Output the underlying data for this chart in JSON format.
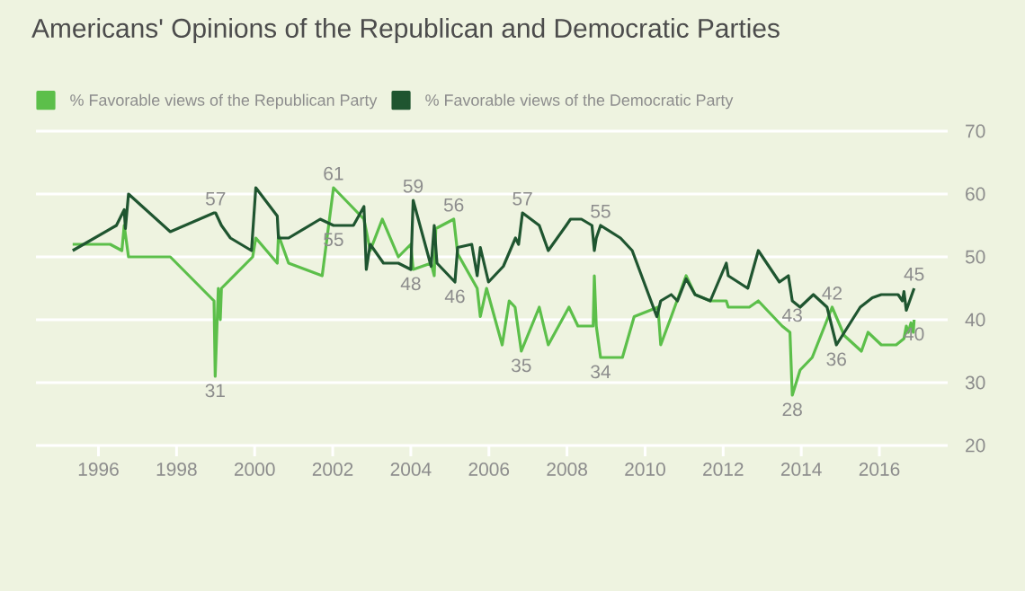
{
  "chart_data": {
    "type": "line",
    "title": "Americans' Opinions of the Republican and Democratic Parties",
    "series": [
      {
        "name": "% Favorable views of the Republican Party",
        "color": "#5cbf4a",
        "x": [
          1995.34,
          1996.3,
          1996.6,
          1996.66,
          1996.77,
          1997.84,
          1998.96,
          1998.99,
          1999.07,
          1999.12,
          1999.15,
          1999.95,
          2000.03,
          2000.58,
          2000.61,
          2000.87,
          2001.73,
          2002.02,
          2002.8,
          2002.96,
          2003.27,
          2003.68,
          2004.0,
          2004.06,
          2004.52,
          2004.6,
          2004.64,
          2005.1,
          2005.2,
          2005.7,
          2005.78,
          2005.94,
          2006.34,
          2006.52,
          2006.67,
          2006.83,
          2007.29,
          2007.52,
          2008.05,
          2008.28,
          2008.67,
          2008.7,
          2008.75,
          2008.86,
          2009.42,
          2009.72,
          2010.33,
          2010.4,
          2010.67,
          2011.05,
          2011.28,
          2011.67,
          2012.08,
          2012.13,
          2012.67,
          2012.9,
          2013.51,
          2013.71,
          2013.77,
          2013.97,
          2014.28,
          2014.79,
          2015.1,
          2015.54,
          2015.71,
          2016.05,
          2016.43,
          2016.63,
          2016.69,
          2016.74,
          2016.81,
          2016.87,
          2016.89
        ],
        "values": [
          52,
          52,
          51,
          55,
          50,
          50,
          43,
          31,
          45,
          40,
          45,
          50,
          53,
          49,
          53.5,
          49,
          47,
          61,
          56,
          51,
          56,
          50,
          52,
          48,
          49,
          47,
          54.5,
          56,
          50.5,
          45,
          40.5,
          45,
          36,
          43,
          42,
          35,
          42,
          36,
          42,
          39,
          39,
          47,
          39,
          34,
          34,
          40.5,
          42,
          36,
          40.5,
          47,
          44,
          43,
          43,
          42,
          42,
          43,
          39,
          38,
          28,
          32,
          34,
          42,
          37.5,
          35,
          38,
          36,
          36,
          37,
          39,
          38,
          39.5,
          38,
          40
        ]
      },
      {
        "name": "% Favorable views of the Democratic Party",
        "color": "#1f5530",
        "x": [
          1995.34,
          1996.46,
          1996.66,
          1996.69,
          1996.77,
          1997.84,
          1998.96,
          1999.0,
          1999.15,
          1999.38,
          1999.92,
          2000.03,
          2000.58,
          2000.61,
          2000.87,
          2001.68,
          2002.02,
          2002.53,
          2002.8,
          2002.86,
          2002.96,
          2003.3,
          2003.68,
          2004.0,
          2004.06,
          2004.52,
          2004.6,
          2004.67,
          2005.13,
          2005.2,
          2005.56,
          2005.7,
          2005.78,
          2005.99,
          2006.37,
          2006.68,
          2006.76,
          2006.86,
          2007.29,
          2007.52,
          2007.98,
          2008.09,
          2008.37,
          2008.64,
          2008.7,
          2008.75,
          2008.86,
          2009.37,
          2009.67,
          2010.3,
          2010.4,
          2010.67,
          2010.83,
          2011.05,
          2011.28,
          2011.67,
          2012.08,
          2012.13,
          2012.63,
          2012.9,
          2013.44,
          2013.67,
          2013.77,
          2013.97,
          2014.31,
          2014.66,
          2014.9,
          2015.51,
          2015.82,
          2016.05,
          2016.48,
          2016.59,
          2016.63,
          2016.69,
          2016.89
        ],
        "values": [
          51,
          55,
          57.5,
          54.5,
          60,
          54,
          57,
          57,
          55,
          53,
          51,
          61,
          56.5,
          53,
          53,
          56,
          55,
          55,
          58,
          48,
          52,
          49,
          49,
          48,
          59,
          48.5,
          55,
          49,
          46,
          51.5,
          52,
          47,
          51.5,
          46,
          48.5,
          53,
          52,
          57,
          55,
          51,
          55,
          56,
          56,
          55,
          51,
          53,
          55,
          53,
          51,
          40.5,
          43,
          44,
          43,
          46.5,
          44,
          43,
          49,
          47,
          45,
          51,
          46,
          47,
          43,
          42,
          44,
          42,
          36,
          42,
          43.5,
          44,
          44,
          43,
          44.5,
          41.5,
          45
        ]
      }
    ],
    "xlim": [
      1994.4,
      2017.75
    ],
    "xticks": [
      1996,
      1998,
      2000,
      2002,
      2004,
      2006,
      2008,
      2010,
      2012,
      2014,
      2016
    ],
    "ylim": [
      20,
      70
    ],
    "yticks": [
      20,
      30,
      40,
      50,
      60,
      70
    ],
    "grid": "y",
    "legend": "top left",
    "annotations": [
      {
        "text": "57",
        "x": 1999.0,
        "y": 57
      },
      {
        "text": "31",
        "x": 1998.99,
        "y": 31
      },
      {
        "text": "61",
        "x": 2002.02,
        "y": 61
      },
      {
        "text": "55",
        "x": 2002.02,
        "y": 55
      },
      {
        "text": "59",
        "x": 2004.06,
        "y": 59
      },
      {
        "text": "48",
        "x": 2004.0,
        "y": 48
      },
      {
        "text": "56",
        "x": 2005.1,
        "y": 56
      },
      {
        "text": "46",
        "x": 2005.13,
        "y": 46
      },
      {
        "text": "57",
        "x": 2006.86,
        "y": 57
      },
      {
        "text": "35",
        "x": 2006.83,
        "y": 35
      },
      {
        "text": "55",
        "x": 2008.86,
        "y": 55
      },
      {
        "text": "34",
        "x": 2008.86,
        "y": 34
      },
      {
        "text": "43",
        "x": 2013.77,
        "y": 43
      },
      {
        "text": "28",
        "x": 2013.77,
        "y": 28
      },
      {
        "text": "42",
        "x": 2014.79,
        "y": 42
      },
      {
        "text": "36",
        "x": 2014.9,
        "y": 36
      },
      {
        "text": "45",
        "x": 2016.89,
        "y": 45
      },
      {
        "text": "40",
        "x": 2016.89,
        "y": 40
      }
    ]
  }
}
